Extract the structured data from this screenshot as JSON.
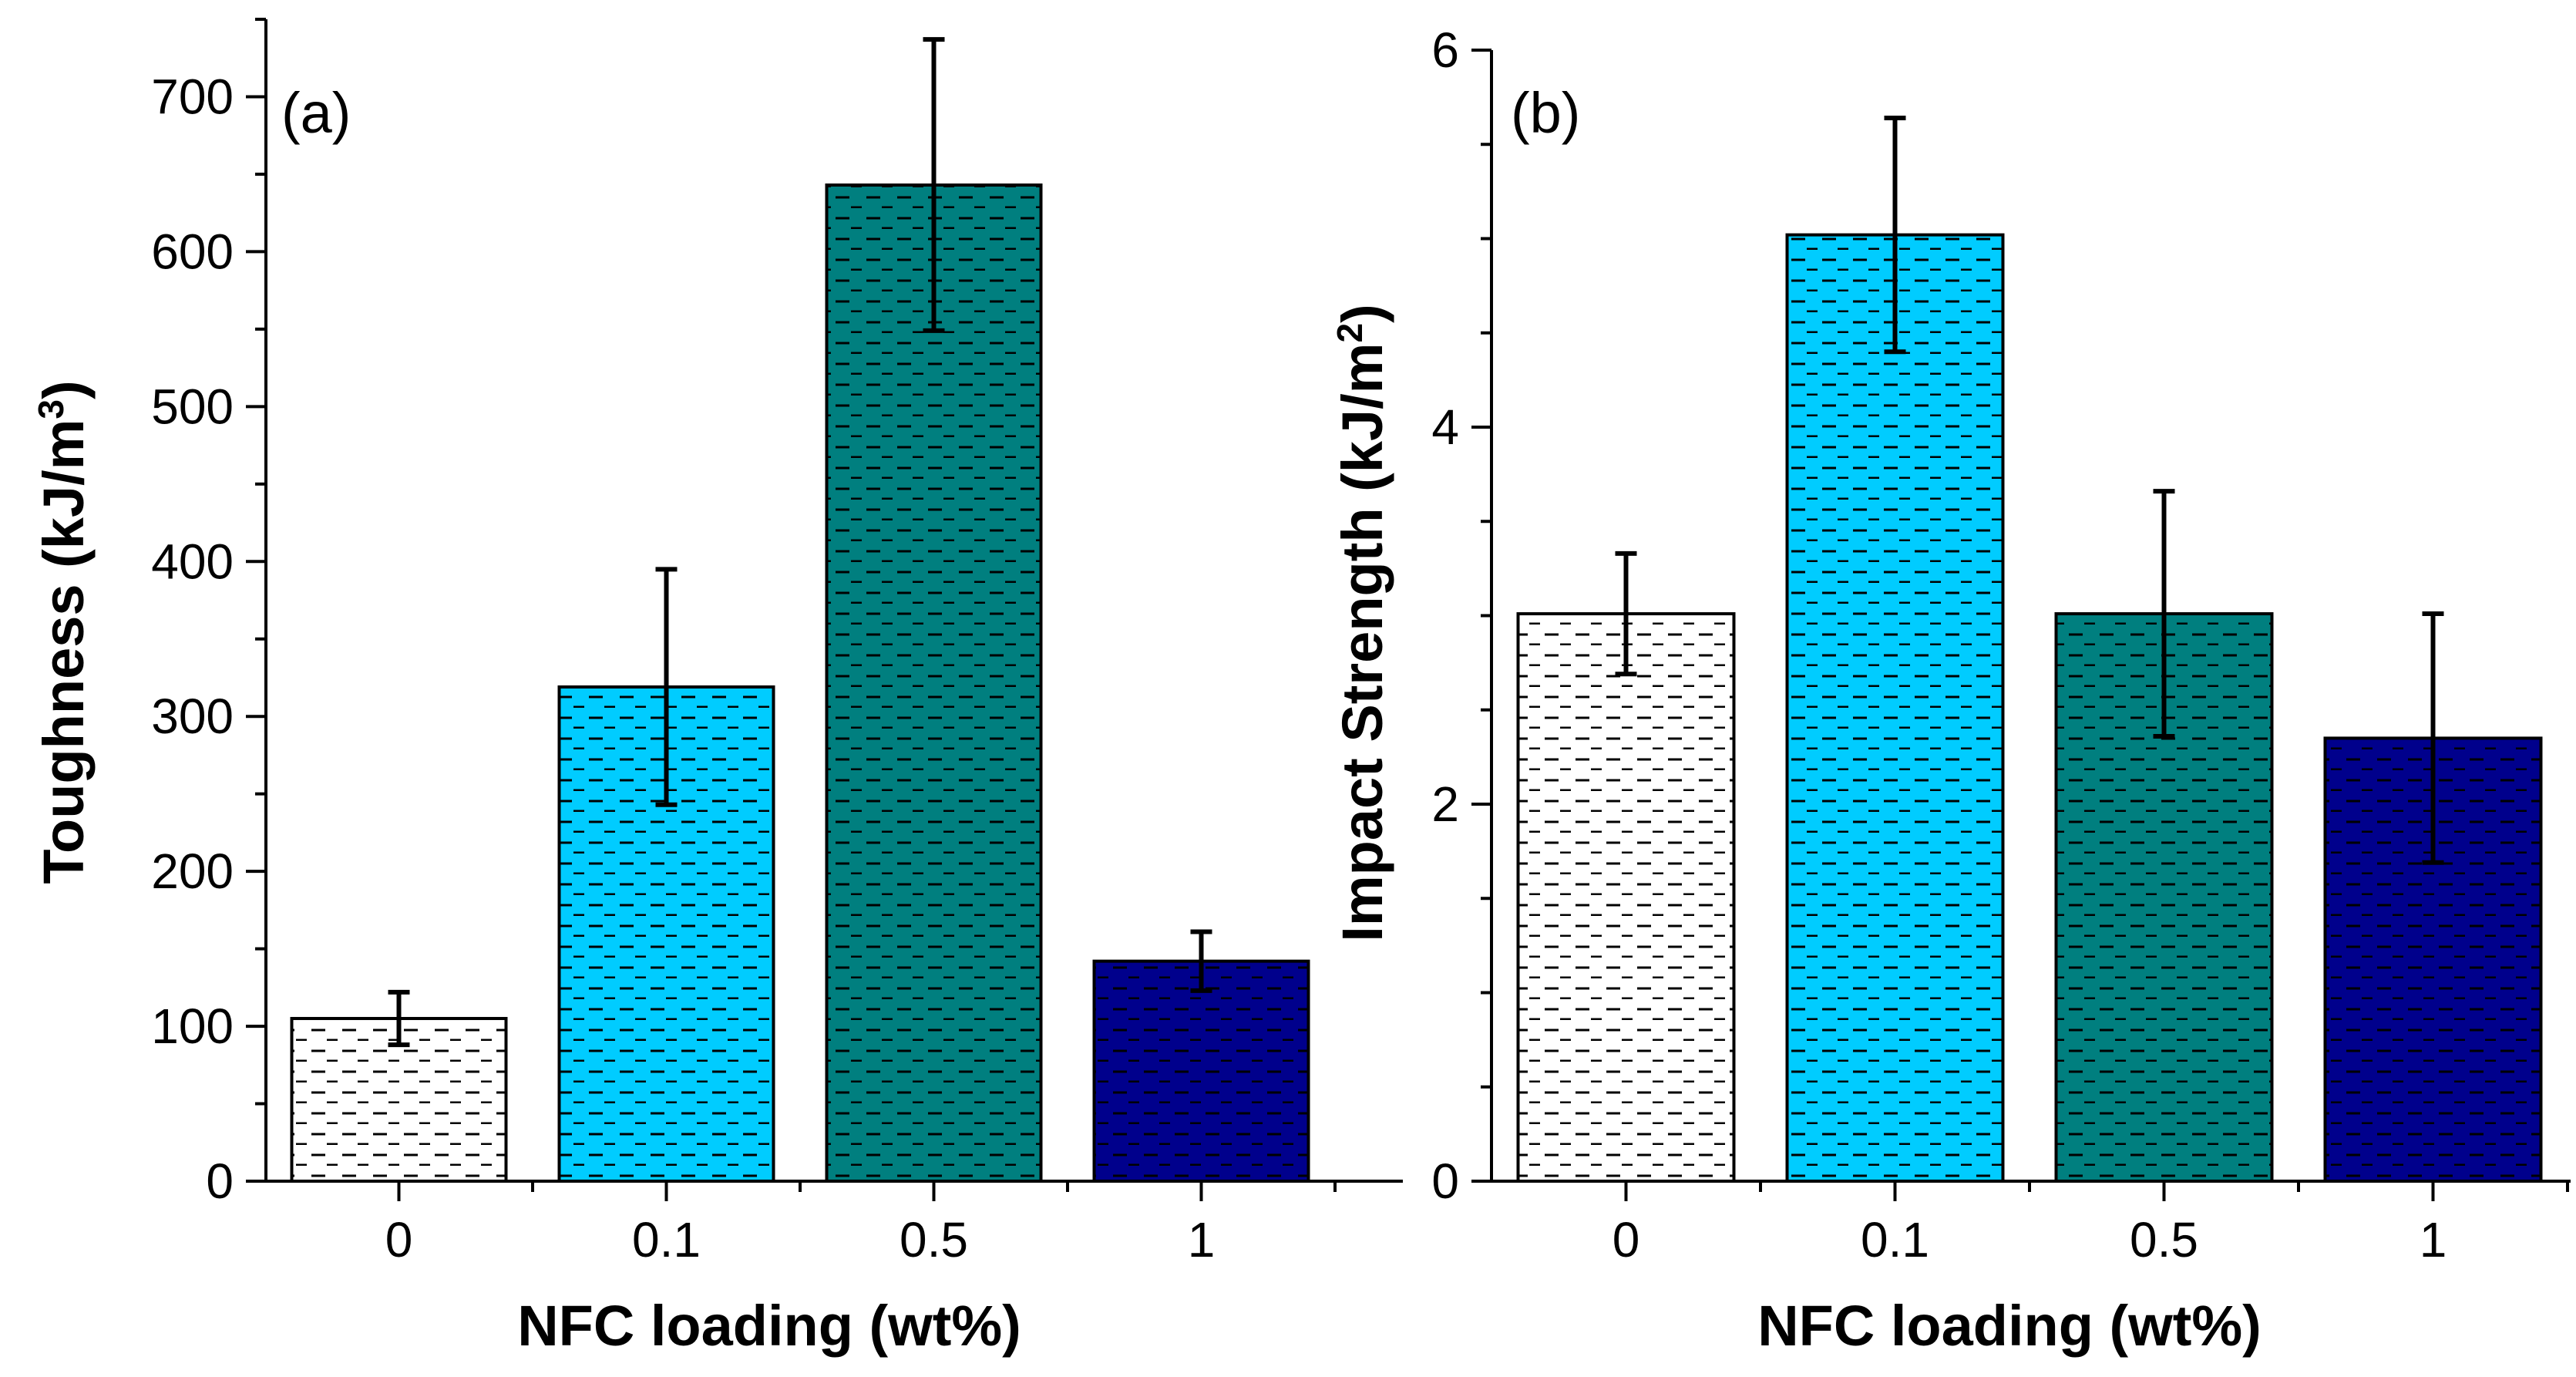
{
  "chart_data": [
    {
      "type": "bar",
      "panel_label": "(a)",
      "categories": [
        "0",
        "0.1",
        "0.5",
        "1"
      ],
      "values": [
        105,
        319,
        643,
        142
      ],
      "errors": [
        17,
        76,
        94,
        19
      ],
      "colors": [
        "#ffffff",
        "#00ccff",
        "#007f7f",
        "#00008c"
      ],
      "pattern": "dashed-horizontal",
      "xlabel": "NFC loading (wt%)",
      "ylabel": "Toughness (kJ/m",
      "ylabel_sup": "3",
      "ylabel_end": ")",
      "ylim": [
        0,
        750
      ],
      "yticks": [
        0,
        100,
        200,
        300,
        400,
        500,
        600,
        700
      ],
      "ytick_labels": [
        "0",
        "100",
        "200",
        "300",
        "400",
        "500",
        "600",
        "700"
      ]
    },
    {
      "type": "bar",
      "panel_label": "(b)",
      "categories": [
        "0",
        "0.1",
        "0.5",
        "1"
      ],
      "values": [
        3.01,
        5.02,
        3.01,
        2.35
      ],
      "errors": [
        0.32,
        0.62,
        0.65,
        0.66
      ],
      "colors": [
        "#ffffff",
        "#00ccff",
        "#007f7f",
        "#00008c"
      ],
      "pattern": "dashed-horizontal",
      "xlabel": "NFC loading (wt%)",
      "ylabel": "Impact Strength (kJ/m",
      "ylabel_sup": "2",
      "ylabel_end": ")",
      "ylim": [
        0,
        6
      ],
      "yticks": [
        0,
        2,
        4,
        6
      ],
      "ytick_labels": [
        "0",
        "2",
        "4",
        "6"
      ]
    }
  ]
}
